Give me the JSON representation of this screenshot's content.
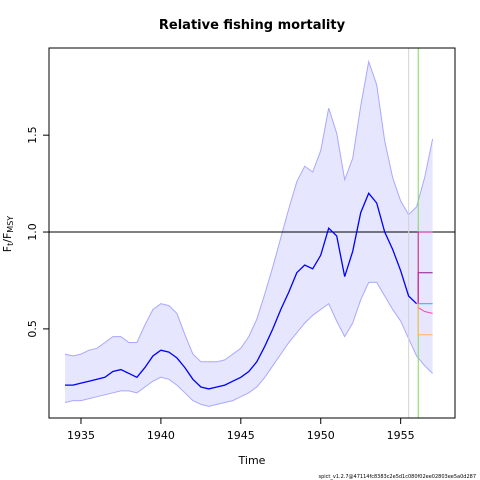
{
  "chart_data": {
    "type": "line",
    "title": "Relative fishing mortality",
    "xlabel": "Time",
    "ylabel": {
      "main": "F",
      "sub1": "t",
      "sep": "/F",
      "sub2": "MSY"
    },
    "xlim": [
      1933.0,
      1958.4
    ],
    "ylim": [
      0.04,
      1.95
    ],
    "xticks": [
      "1935",
      "1940",
      "1945",
      "1950",
      "1955"
    ],
    "yticks": [
      "0.5",
      "1.0",
      "1.5"
    ],
    "reference_line": 1.0,
    "vertical_lines": [
      {
        "x": 1955.5,
        "color": "#d3d3d3"
      },
      {
        "x": 1956.1,
        "color": "#7ddc55"
      }
    ],
    "colors": {
      "line": "#0000ff",
      "band_fill": "#e6e6ff",
      "band_edge": "#a8a8ff"
    },
    "x": [
      1934,
      1934.5,
      1935,
      1935.5,
      1936,
      1936.5,
      1937,
      1937.5,
      1938,
      1938.5,
      1939,
      1939.5,
      1940,
      1940.5,
      1941,
      1941.5,
      1942,
      1942.5,
      1943,
      1943.5,
      1944,
      1944.5,
      1945,
      1945.5,
      1946,
      1946.5,
      1947,
      1947.5,
      1948,
      1948.5,
      1949,
      1949.5,
      1950,
      1950.5,
      1951,
      1951.5,
      1952,
      1952.5,
      1953,
      1953.5,
      1954,
      1954.5,
      1955,
      1955.5,
      1956
    ],
    "series": [
      {
        "values": [
          0.21,
          0.21,
          0.22,
          0.23,
          0.24,
          0.25,
          0.28,
          0.29,
          0.27,
          0.25,
          0.3,
          0.36,
          0.39,
          0.38,
          0.35,
          0.3,
          0.24,
          0.2,
          0.19,
          0.2,
          0.21,
          0.23,
          0.25,
          0.28,
          0.33,
          0.41,
          0.5,
          0.6,
          0.69,
          0.79,
          0.83,
          0.81,
          0.88,
          1.02,
          0.98,
          0.77,
          0.9,
          1.1,
          1.2,
          1.15,
          1.0,
          0.91,
          0.8,
          0.67,
          0.63
        ]
      },
      {
        "values": [
          0.37,
          0.36,
          0.37,
          0.39,
          0.4,
          0.43,
          0.46,
          0.46,
          0.43,
          0.43,
          0.52,
          0.6,
          0.63,
          0.62,
          0.58,
          0.47,
          0.37,
          0.33,
          0.33,
          0.33,
          0.34,
          0.37,
          0.4,
          0.46,
          0.55,
          0.68,
          0.82,
          0.97,
          1.12,
          1.26,
          1.34,
          1.31,
          1.42,
          1.64,
          1.51,
          1.27,
          1.38,
          1.65,
          1.88,
          1.76,
          1.47,
          1.28,
          1.16,
          1.09,
          1.13
        ]
      },
      {
        "values": [
          0.12,
          0.13,
          0.13,
          0.14,
          0.15,
          0.16,
          0.17,
          0.18,
          0.18,
          0.17,
          0.2,
          0.23,
          0.25,
          0.24,
          0.21,
          0.17,
          0.13,
          0.11,
          0.1,
          0.11,
          0.12,
          0.13,
          0.15,
          0.17,
          0.2,
          0.25,
          0.31,
          0.37,
          0.43,
          0.48,
          0.53,
          0.57,
          0.6,
          0.63,
          0.54,
          0.46,
          0.53,
          0.65,
          0.74,
          0.74,
          0.67,
          0.6,
          0.54,
          0.45,
          0.36
        ]
      }
    ],
    "band_tail": {
      "x": [
        1956,
        1956.5,
        1957
      ],
      "upper": [
        1.13,
        1.28,
        1.48
      ],
      "lower": [
        0.36,
        0.31,
        0.27
      ]
    },
    "scenario_lines": [
      {
        "color": "#8b1a8b",
        "x": [
          1956.1,
          1957
        ],
        "values": [
          0.79,
          0.79
        ]
      },
      {
        "color": "#d81b9a",
        "x": [
          1956.1,
          1957
        ],
        "values": [
          1.0,
          1.0
        ]
      },
      {
        "color": "#00bfff",
        "x": [
          1956.1,
          1957
        ],
        "values": [
          0.63,
          0.63
        ]
      },
      {
        "color": "#ff44aa",
        "x": [
          1956.1,
          1956.5,
          1957
        ],
        "values": [
          0.61,
          0.59,
          0.58
        ]
      },
      {
        "color": "#ffb84d",
        "x": [
          1956.1,
          1957
        ],
        "values": [
          0.47,
          0.47
        ]
      }
    ],
    "footer": "spict_v1.2.7@47114fc8383c2e5d1c080f02ee02803ee5a0d287"
  }
}
